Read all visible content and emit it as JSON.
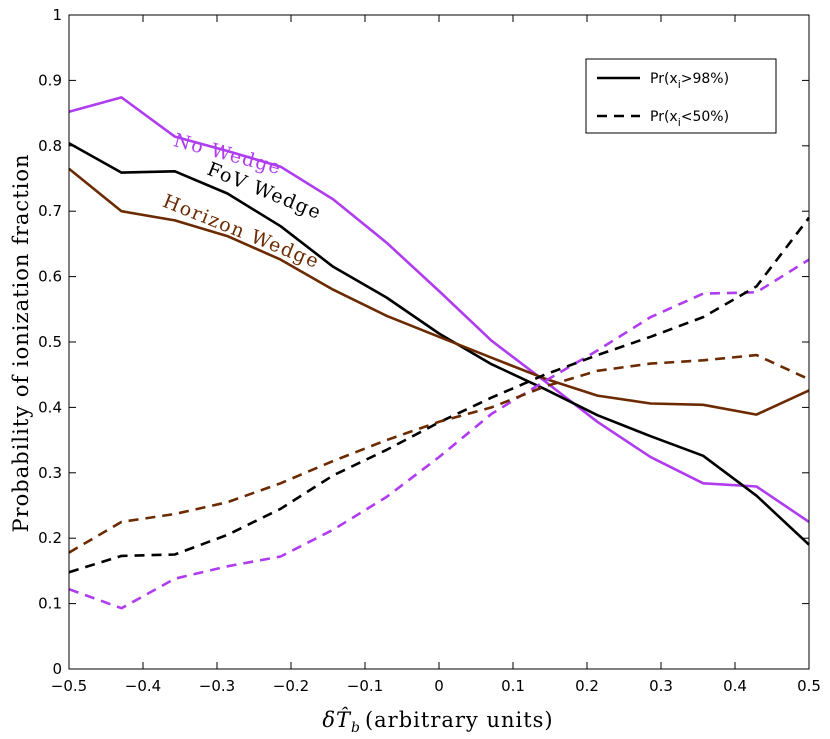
{
  "chart_data": {
    "type": "line",
    "xlabel": "δT̂_b (arbitrary units)",
    "xlabel_symbol": "δT̂",
    "xlabel_sub": "b",
    "xlabel_rest": "(arbitrary units)",
    "ylabel": "Probability of ionization fraction",
    "xlim": [
      -0.5,
      0.5
    ],
    "ylim": [
      0,
      1
    ],
    "xticks": [
      -0.5,
      -0.4,
      -0.3,
      -0.2,
      -0.1,
      0,
      0.1,
      0.2,
      0.3,
      0.4,
      0.5
    ],
    "xtick_labels": [
      "−0.5",
      "−0.4",
      "−0.3",
      "−0.2",
      "−0.1",
      "0",
      "0.1",
      "0.2",
      "0.3",
      "0.4",
      "0.5"
    ],
    "yticks": [
      0,
      0.1,
      0.2,
      0.3,
      0.4,
      0.5,
      0.6,
      0.7,
      0.8,
      0.9,
      1
    ],
    "ytick_labels": [
      "0",
      "0.1",
      "0.2",
      "0.3",
      "0.4",
      "0.5",
      "0.6",
      "0.7",
      "0.8",
      "0.9",
      "1"
    ],
    "grid": false,
    "x": [
      -0.5,
      -0.429,
      -0.357,
      -0.286,
      -0.214,
      -0.143,
      -0.071,
      0,
      0.071,
      0.143,
      0.214,
      0.286,
      0.357,
      0.429,
      0.5
    ],
    "legend": {
      "position": "top-right",
      "entries": [
        {
          "style": "solid",
          "text": "Pr(x",
          "sub": "i",
          "rest": ">98%)"
        },
        {
          "style": "dashed",
          "text": "Pr(x",
          "sub": "i",
          "rest": "<50%)"
        }
      ]
    },
    "annotations": [
      {
        "text": "No Wedge",
        "color": "#b03cf0",
        "x": -0.36,
        "y": 0.8,
        "angle": 15
      },
      {
        "text": "FoV Wedge",
        "color": "#000000",
        "x": -0.315,
        "y": 0.757,
        "angle": 22
      },
      {
        "text": "Horizon Wedge",
        "color": "#6b2a00",
        "x": -0.375,
        "y": 0.708,
        "angle": 22
      }
    ],
    "series": [
      {
        "name": "No Wedge Pr(x_i>98%)",
        "style": "solid",
        "color": "#b03cf0",
        "values": [
          0.852,
          0.874,
          0.814,
          0.792,
          0.768,
          0.718,
          0.652,
          0.578,
          0.502,
          0.44,
          0.378,
          0.324,
          0.284,
          0.279,
          0.225
        ]
      },
      {
        "name": "FoV Wedge Pr(x_i>98%)",
        "style": "solid",
        "color": "#000000",
        "values": [
          0.804,
          0.759,
          0.761,
          0.727,
          0.677,
          0.615,
          0.568,
          0.513,
          0.466,
          0.428,
          0.388,
          0.356,
          0.326,
          0.265,
          0.19
        ]
      },
      {
        "name": "Horizon Wedge Pr(x_i>98%)",
        "style": "solid",
        "color": "#6b2a00",
        "values": [
          0.765,
          0.7,
          0.686,
          0.662,
          0.626,
          0.58,
          0.54,
          0.508,
          0.476,
          0.444,
          0.418,
          0.406,
          0.404,
          0.389,
          0.426
        ]
      },
      {
        "name": "No Wedge Pr(x_i<50%)",
        "style": "dashed",
        "color": "#b03cf0",
        "values": [
          0.122,
          0.093,
          0.138,
          0.157,
          0.172,
          0.213,
          0.263,
          0.324,
          0.39,
          0.44,
          0.487,
          0.538,
          0.574,
          0.576,
          0.626
        ]
      },
      {
        "name": "FoV Wedge Pr(x_i<50%)",
        "style": "dashed",
        "color": "#000000",
        "values": [
          0.148,
          0.173,
          0.175,
          0.205,
          0.245,
          0.296,
          0.335,
          0.377,
          0.415,
          0.45,
          0.48,
          0.508,
          0.538,
          0.585,
          0.69
        ]
      },
      {
        "name": "Horizon Wedge Pr(x_i<50%)",
        "style": "dashed",
        "color": "#6b2a00",
        "values": [
          0.178,
          0.225,
          0.237,
          0.255,
          0.284,
          0.318,
          0.35,
          0.378,
          0.4,
          0.432,
          0.456,
          0.467,
          0.472,
          0.48,
          0.443
        ]
      }
    ]
  }
}
